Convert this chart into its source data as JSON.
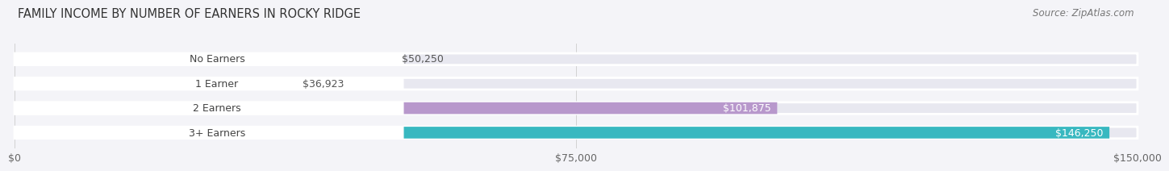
{
  "title": "FAMILY INCOME BY NUMBER OF EARNERS IN ROCKY RIDGE",
  "source": "Source: ZipAtlas.com",
  "categories": [
    "No Earners",
    "1 Earner",
    "2 Earners",
    "3+ Earners"
  ],
  "values": [
    50250,
    36923,
    101875,
    146250
  ],
  "bar_colors": [
    "#f2a0aa",
    "#aabce8",
    "#b898cc",
    "#38b8c0"
  ],
  "bar_bg_color": "#e8e8f0",
  "background_color": "#f4f4f8",
  "xlim": [
    0,
    150000
  ],
  "xticks": [
    0,
    75000,
    150000
  ],
  "xtick_labels": [
    "$0",
    "$75,000",
    "$150,000"
  ],
  "title_fontsize": 10.5,
  "source_fontsize": 8.5,
  "label_fontsize": 9,
  "value_fontsize": 9
}
